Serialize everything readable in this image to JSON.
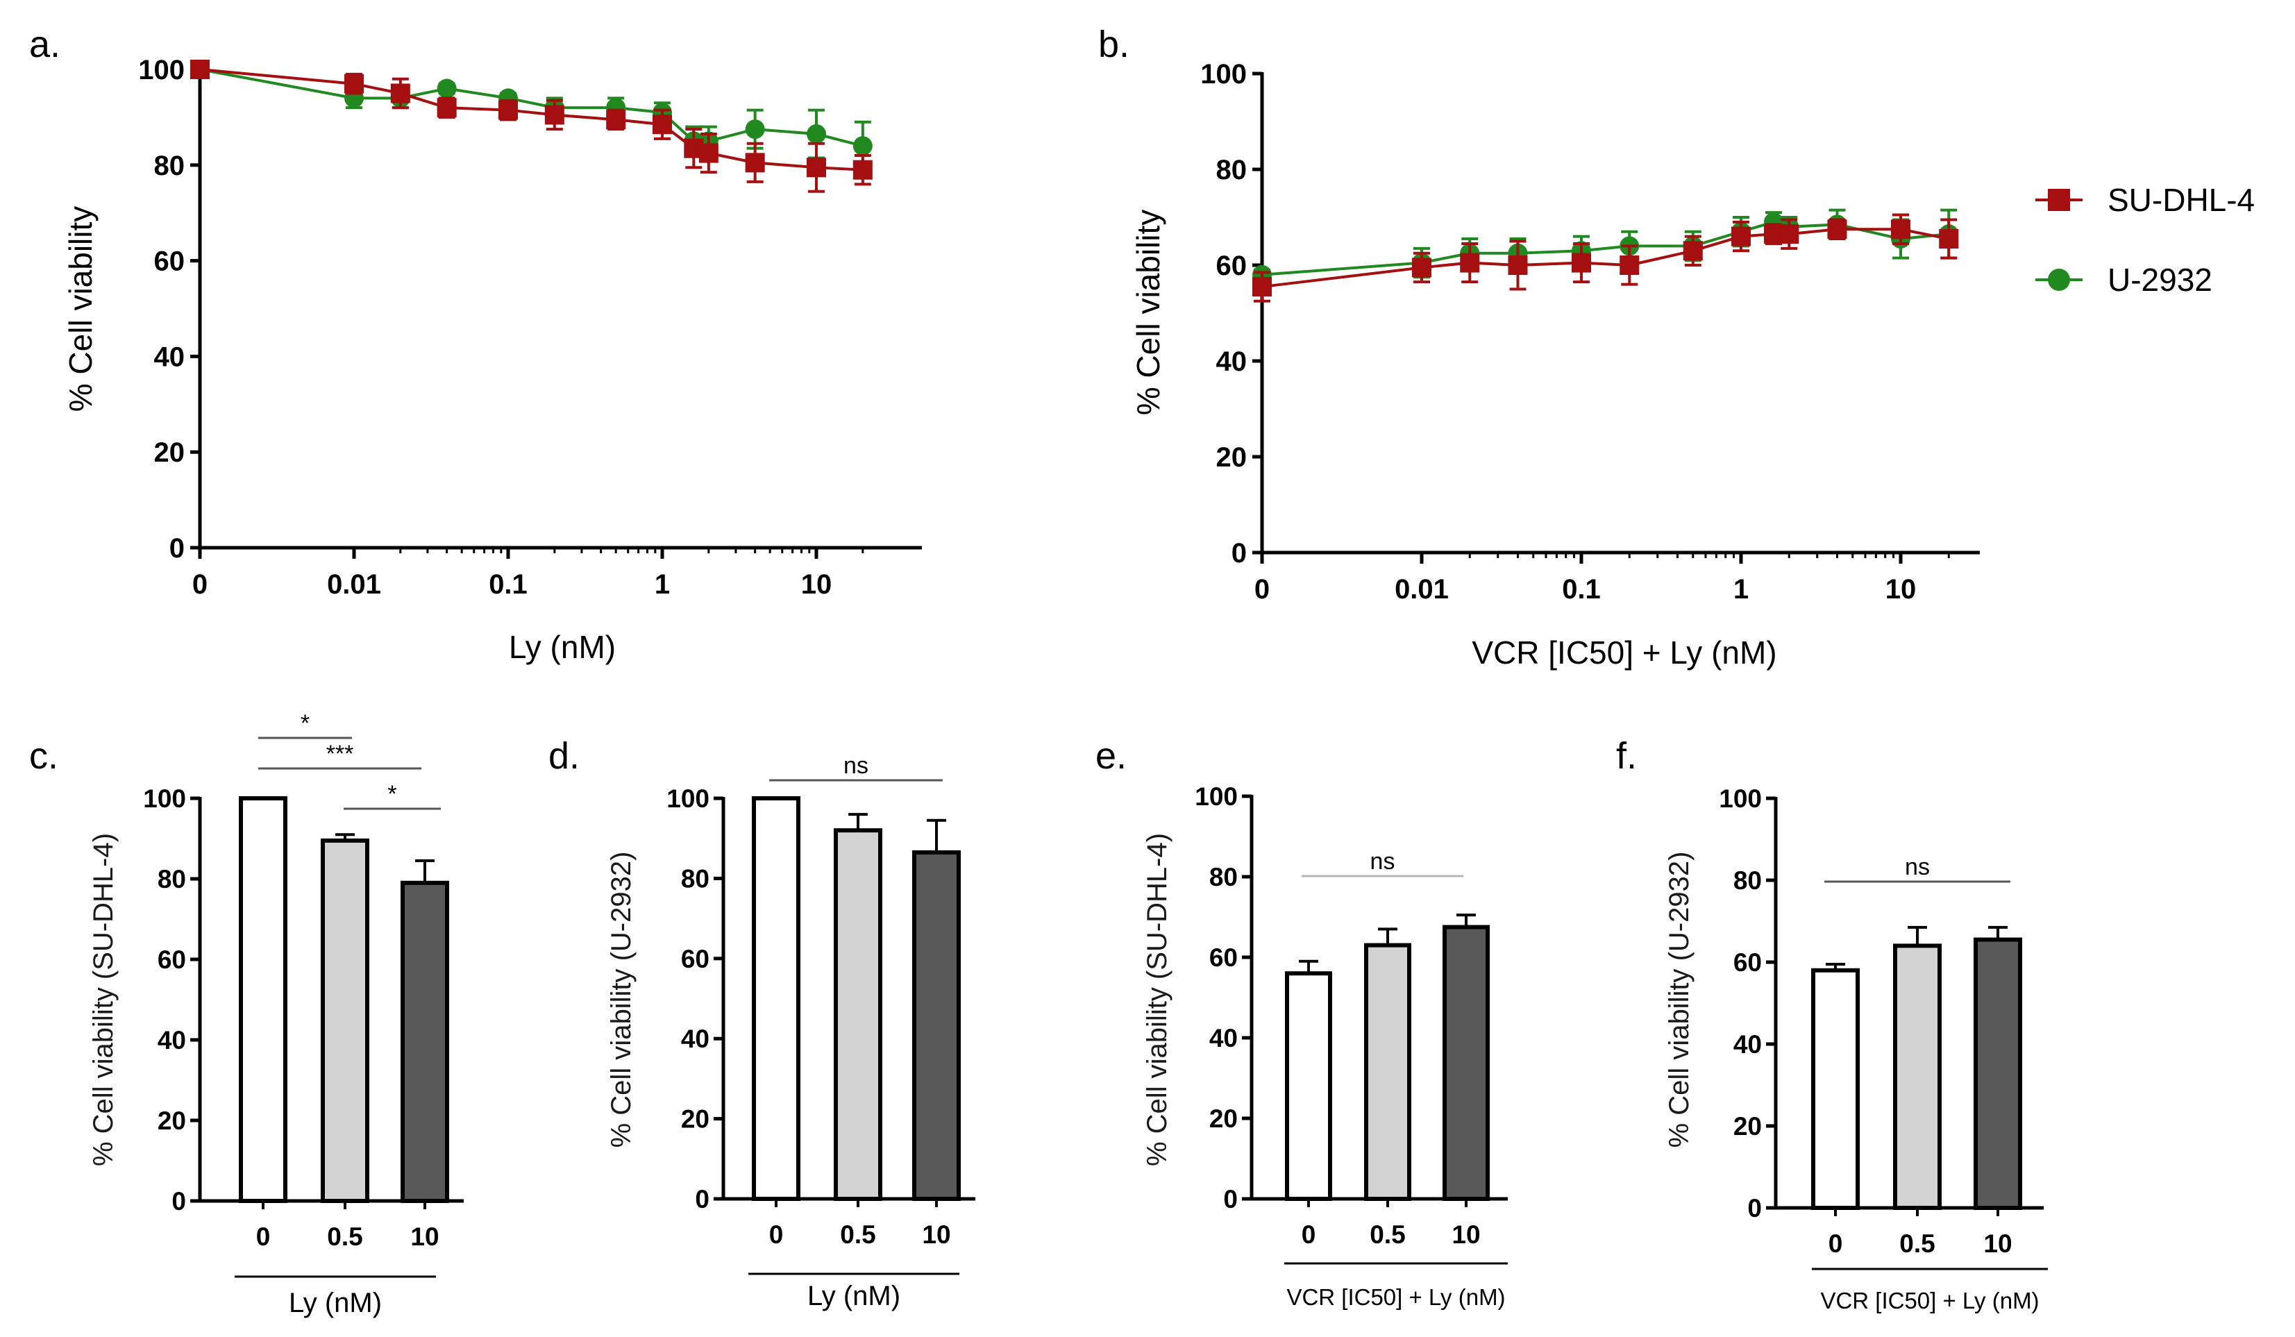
{
  "colors": {
    "sudhl4": "#a50f0f",
    "u2932": "#208a20",
    "bar_0": "#ffffff",
    "bar_05": "#d3d3d3",
    "bar_10": "#595959",
    "axis": "#000000",
    "bracket": "#555555"
  },
  "legend": {
    "sudhl4": "SU-DHL-4",
    "u2932": "U-2932"
  },
  "chart_data": [
    {
      "panel": "a.",
      "type": "line",
      "xscale": "log-with-zero",
      "xlabel": "Ly (nM)",
      "ylabel": "% Cell viability",
      "ylim": [
        0,
        100
      ],
      "yticks": [
        "0",
        "20",
        "40",
        "60",
        "80",
        "100"
      ],
      "xticks": [
        "0",
        "0.01",
        "0.1",
        "1",
        "10"
      ],
      "series": [
        {
          "name": "SU-DHL-4",
          "marker": "square",
          "x": [
            0,
            0.01,
            0.02,
            0.04,
            0.1,
            0.2,
            0.5,
            1,
            1.6,
            2,
            4,
            10,
            20
          ],
          "y": [
            100,
            97,
            95,
            92,
            91.5,
            90.5,
            89.5,
            88.5,
            83.5,
            82.5,
            80.5,
            79.5,
            79
          ],
          "err": [
            0,
            2,
            3,
            2,
            2,
            3,
            2,
            3,
            4,
            4,
            4,
            5,
            3
          ]
        },
        {
          "name": "U-2932",
          "marker": "circle",
          "x": [
            0,
            0.01,
            0.02,
            0.04,
            0.1,
            0.2,
            0.5,
            1,
            1.6,
            2,
            4,
            10,
            20
          ],
          "y": [
            100,
            94,
            94,
            96,
            94,
            92,
            92,
            91,
            85,
            85,
            87.5,
            86.5,
            84
          ],
          "err": [
            0,
            2,
            2,
            1,
            1,
            2,
            2,
            2,
            3,
            3,
            4,
            5,
            5
          ]
        }
      ]
    },
    {
      "panel": "b.",
      "type": "line",
      "xscale": "log-with-zero",
      "xlabel": "VCR [IC50] + Ly (nM)",
      "ylabel": "% Cell viability",
      "ylim": [
        0,
        100
      ],
      "yticks": [
        "0",
        "20",
        "40",
        "60",
        "80",
        "100"
      ],
      "xticks": [
        "0",
        "0.01",
        "0.1",
        "1",
        "10"
      ],
      "series": [
        {
          "name": "SU-DHL-4",
          "marker": "square",
          "x": [
            0,
            0.01,
            0.02,
            0.04,
            0.1,
            0.2,
            0.5,
            1,
            1.6,
            2,
            4,
            10,
            20
          ],
          "y": [
            55.5,
            59.5,
            60.5,
            60,
            60.5,
            60,
            63,
            66,
            66.5,
            66.5,
            67.5,
            67.5,
            65.5
          ],
          "err": [
            3,
            3,
            4,
            5,
            4,
            4,
            3,
            3,
            2,
            3,
            2,
            3,
            4
          ]
        },
        {
          "name": "U-2932",
          "marker": "circle",
          "x": [
            0,
            0.01,
            0.02,
            0.04,
            0.1,
            0.2,
            0.5,
            1,
            1.6,
            2,
            4,
            10,
            20
          ],
          "y": [
            58,
            60.5,
            62.5,
            62.5,
            63,
            64,
            64,
            67,
            69,
            68,
            68.5,
            65.5,
            66.5
          ],
          "err": [
            1,
            3,
            3,
            3,
            3,
            3,
            3,
            3,
            2,
            2,
            3,
            4,
            5
          ]
        }
      ]
    },
    {
      "panel": "c.",
      "type": "bar",
      "ylabel": "% Cell viability (SU-DHL-4)",
      "xlabel": "Ly (nM)",
      "categories": [
        "0",
        "0.5",
        "10"
      ],
      "values": [
        100,
        89.5,
        79
      ],
      "err": [
        0,
        1.5,
        5.5
      ],
      "ylim": [
        0,
        100
      ],
      "yticks": [
        "0",
        "20",
        "40",
        "60",
        "80",
        "100"
      ],
      "annotations": [
        {
          "from": 0,
          "to": 1,
          "label": "*"
        },
        {
          "from": 0,
          "to": 2,
          "label": "***"
        },
        {
          "from": 1,
          "to": 2,
          "label": "*"
        }
      ]
    },
    {
      "panel": "d.",
      "type": "bar",
      "ylabel": "% Cell viability (U-2932)",
      "xlabel": "Ly (nM)",
      "categories": [
        "0",
        "0.5",
        "10"
      ],
      "values": [
        100,
        92,
        86.5
      ],
      "err": [
        0,
        4,
        8
      ],
      "ylim": [
        0,
        100
      ],
      "yticks": [
        "0",
        "20",
        "40",
        "60",
        "80",
        "100"
      ],
      "annotations": [
        {
          "from": 0,
          "to": 2,
          "label": "ns"
        }
      ]
    },
    {
      "panel": "e.",
      "type": "bar",
      "ylabel": "% Cell viability (SU-DHL-4)",
      "xlabel": "VCR [IC50] + Ly (nM)",
      "categories": [
        "0",
        "0.5",
        "10"
      ],
      "values": [
        56,
        63,
        67.5
      ],
      "err": [
        3,
        4,
        3
      ],
      "ylim": [
        0,
        100
      ],
      "yticks": [
        "0",
        "20",
        "40",
        "60",
        "80",
        "100"
      ],
      "annotations": [
        {
          "from": 0,
          "to": 2,
          "label": "ns"
        }
      ]
    },
    {
      "panel": "f.",
      "type": "bar",
      "ylabel": "% Cell viability (U-2932)",
      "xlabel": "VCR [IC50] + Ly (nM)",
      "categories": [
        "0",
        "0.5",
        "10"
      ],
      "values": [
        58,
        64,
        65.5
      ],
      "err": [
        1.5,
        4.5,
        3
      ],
      "ylim": [
        0,
        100
      ],
      "yticks": [
        "0",
        "20",
        "40",
        "60",
        "80",
        "100"
      ],
      "annotations": [
        {
          "from": 0,
          "to": 2,
          "label": "ns"
        }
      ]
    }
  ]
}
